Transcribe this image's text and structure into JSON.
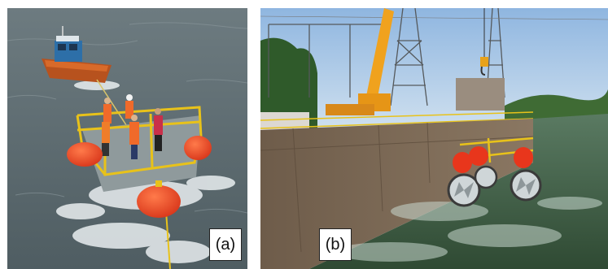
{
  "figure": {
    "panels": [
      {
        "id": "a",
        "label": "(a)"
      },
      {
        "id": "b",
        "label": "(b)"
      }
    ]
  },
  "colors": {
    "water_a": "#5f6f73",
    "buoy_orange": "#f04a22",
    "railing_yellow": "#e8c21a",
    "sky_b": "#a9c7e6",
    "concrete_wall": "#7a6652",
    "crane_orange": "#f0a21e",
    "water_b": "#3f5a3c"
  }
}
